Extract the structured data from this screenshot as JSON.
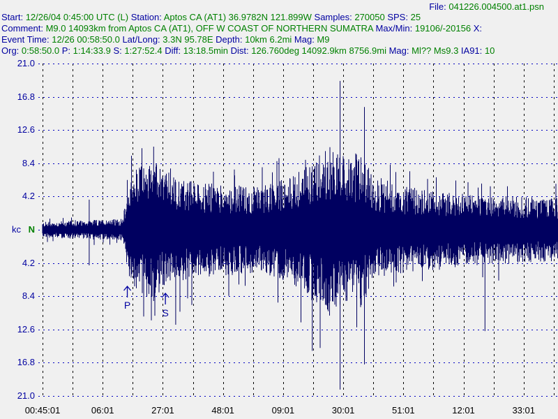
{
  "header": {
    "file_line": [
      {
        "t": "File: ",
        "k": "lbl"
      },
      {
        "t": "041226.004500.at1.psn",
        "k": "val"
      }
    ],
    "lines": [
      [
        {
          "t": "Start: ",
          "k": "lbl"
        },
        {
          "t": "12/26/04  0:45:00 UTC (L) ",
          "k": "val"
        },
        {
          "t": "Station: ",
          "k": "lbl"
        },
        {
          "t": "Aptos CA (AT1) 36.9782N 121.899W ",
          "k": "val"
        },
        {
          "t": "Samples: ",
          "k": "lbl"
        },
        {
          "t": "270050  ",
          "k": "val"
        },
        {
          "t": "SPS: ",
          "k": "lbl"
        },
        {
          "t": "25",
          "k": "val"
        }
      ],
      [
        {
          "t": "Comment: ",
          "k": "lbl"
        },
        {
          "t": "M9.0 14093km from Aptos CA (AT1), OFF W COAST OF NORTHERN SUMATRA   ",
          "k": "val"
        },
        {
          "t": "Max/Min: ",
          "k": "lbl"
        },
        {
          "t": "19106/-20156 ",
          "k": "val"
        },
        {
          "t": "X:",
          "k": "lbl"
        }
      ],
      [
        {
          "t": "Event Time: ",
          "k": "lbl"
        },
        {
          "t": "12/26 00:58:50.0 ",
          "k": "val"
        },
        {
          "t": "Lat/Long: ",
          "k": "lbl"
        },
        {
          "t": "3.3N 95.78E ",
          "k": "val"
        },
        {
          "t": "Depth: ",
          "k": "lbl"
        },
        {
          "t": "10km 6.2mi ",
          "k": "val"
        },
        {
          "t": "Mag: ",
          "k": "lbl"
        },
        {
          "t": "M9",
          "k": "val"
        }
      ],
      [
        {
          "t": "Org: ",
          "k": "lbl"
        },
        {
          "t": "0:58:50.0 ",
          "k": "val"
        },
        {
          "t": "P: ",
          "k": "lbl"
        },
        {
          "t": "1:14:33.9 ",
          "k": "val"
        },
        {
          "t": "S: ",
          "k": "lbl"
        },
        {
          "t": "1:27:52.4 ",
          "k": "val"
        },
        {
          "t": "Diff: ",
          "k": "lbl"
        },
        {
          "t": "13:18.5min ",
          "k": "val"
        },
        {
          "t": "Dist: ",
          "k": "lbl"
        },
        {
          "t": "126.760deg 14092.9km 8756.9mi  ",
          "k": "val"
        },
        {
          "t": "Mag: ",
          "k": "lbl"
        },
        {
          "t": "Ml?? Ms9.3 ",
          "k": "val"
        },
        {
          "t": "IA91: ",
          "k": "lbl"
        },
        {
          "t": "10",
          "k": "val"
        }
      ]
    ]
  },
  "chart_data": {
    "type": "line",
    "title": "",
    "ylabel": "kc",
    "center_label": "N",
    "ylim": [
      -21.0,
      21.0
    ],
    "y_tick_labels": [
      "21.0",
      "16.8",
      "12.6",
      "8.4",
      "4.2",
      "N",
      "4.2",
      "8.4",
      "12.6",
      "16.8",
      "21.0"
    ],
    "y_tick_values": [
      21.0,
      16.8,
      12.6,
      8.4,
      4.2,
      0,
      -4.2,
      -8.4,
      -12.6,
      -16.8,
      -21.0
    ],
    "x_tick_labels": [
      "00:45:01",
      "06:01",
      "27:01",
      "48:01",
      "09:01",
      "30:01",
      "51:01",
      "12:01",
      "33:01"
    ],
    "x_range_minutes": [
      0,
      180
    ],
    "x_tick_minutes": [
      0,
      21,
      42,
      63,
      84,
      105,
      126,
      147,
      168
    ],
    "grid": true,
    "phase_markers": [
      {
        "label": "P",
        "minute": 29.6
      },
      {
        "label": "S",
        "minute": 42.9
      }
    ],
    "envelope_minutes_kc": [
      [
        0,
        1.0
      ],
      [
        15,
        1.2
      ],
      [
        28,
        1.4
      ],
      [
        30,
        6
      ],
      [
        33,
        8
      ],
      [
        38,
        9
      ],
      [
        45,
        7
      ],
      [
        55,
        6
      ],
      [
        75,
        5.5
      ],
      [
        88,
        7
      ],
      [
        94,
        9
      ],
      [
        100,
        11
      ],
      [
        106,
        9
      ],
      [
        111,
        10
      ],
      [
        116,
        6.5
      ],
      [
        125,
        5.5
      ],
      [
        150,
        4.5
      ],
      [
        180,
        4
      ]
    ],
    "spikes_minutes_kc": [
      [
        16.3,
        3.8,
        -4.5
      ],
      [
        38.8,
        10.5,
        -9
      ],
      [
        46.5,
        6,
        -12
      ],
      [
        94.2,
        8,
        -15.3
      ],
      [
        103.9,
        18.8,
        -20.2
      ],
      [
        112.4,
        15.5,
        -17
      ],
      [
        154.5,
        3,
        -12.8
      ]
    ],
    "colors": {
      "trace": "#000060",
      "axis_labels": "#0000a0",
      "grid_h": "#0000c0",
      "grid_v": "#000000",
      "center": "#008000"
    }
  }
}
